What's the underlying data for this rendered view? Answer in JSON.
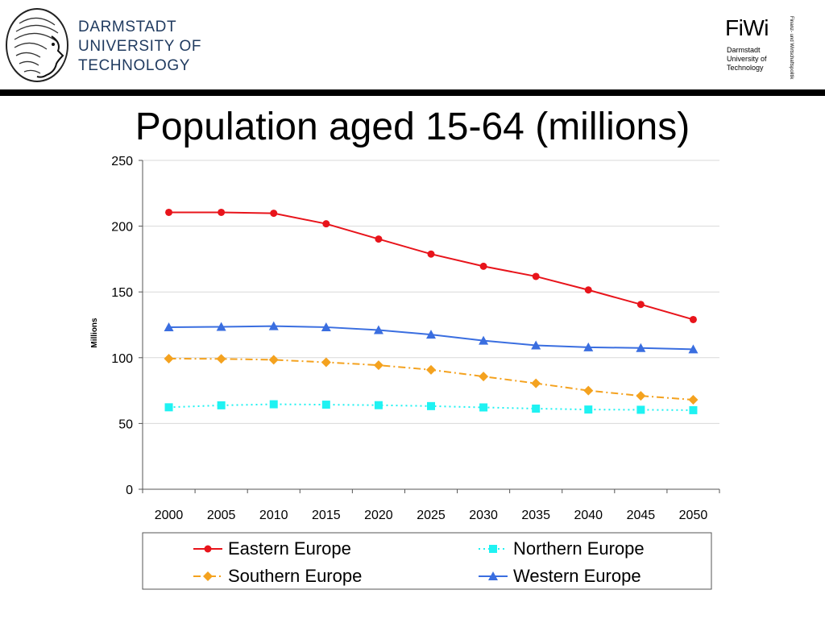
{
  "header": {
    "university_lines": [
      "DARMSTADT",
      "UNIVERSITY OF",
      "TECHNOLOGY"
    ],
    "fiwi_title": "FiWi",
    "fiwi_sub_lines": [
      "Darmstadt",
      "University of",
      "Technology"
    ],
    "fiwi_vertical": "Finanz- und Wirtschaftspolitik",
    "seal_icon": "university-seal-head-icon"
  },
  "slide": {
    "title": "Population aged 15-64 (millions)"
  },
  "chart_data": {
    "type": "line",
    "title": "Population aged 15-64 (millions)",
    "xlabel": "",
    "ylabel": "Millions",
    "categories": [
      "2000",
      "2005",
      "2010",
      "2015",
      "2020",
      "2025",
      "2030",
      "2035",
      "2040",
      "2045",
      "2050"
    ],
    "ylim": [
      0,
      250
    ],
    "yticks": [
      0,
      50,
      100,
      150,
      200,
      250
    ],
    "grid": true,
    "legend_position": "bottom",
    "series": [
      {
        "name": "Eastern Europe",
        "color": "#e8141b",
        "marker": "circle",
        "dash": "solid",
        "values": [
          210.5,
          210.5,
          209.8,
          201.8,
          190.2,
          178.8,
          169.5,
          161.8,
          151.5,
          140.5,
          129
        ]
      },
      {
        "name": "Northern Europe",
        "color": "#1ff2f2",
        "marker": "square",
        "dash": "dotted",
        "values": [
          62.3,
          63.8,
          64.6,
          64.3,
          63.9,
          63.2,
          62.2,
          61.3,
          60.6,
          60.4,
          60.1
        ]
      },
      {
        "name": "Southern Europe",
        "color": "#f4a21f",
        "marker": "diamond",
        "dash": "dashdot",
        "values": [
          99.3,
          99.1,
          98.4,
          96.5,
          94.3,
          90.8,
          85.7,
          80.5,
          75.0,
          71.0,
          68.0
        ]
      },
      {
        "name": "Western Europe",
        "color": "#3a6ee0",
        "marker": "triangle",
        "dash": "solid",
        "values": [
          123.2,
          123.5,
          124.0,
          123.2,
          121.0,
          117.6,
          113.0,
          109.4,
          107.9,
          107.4,
          106.4
        ]
      }
    ],
    "legend_order": [
      "Eastern Europe",
      "Northern Europe",
      "Southern Europe",
      "Western Europe"
    ]
  }
}
